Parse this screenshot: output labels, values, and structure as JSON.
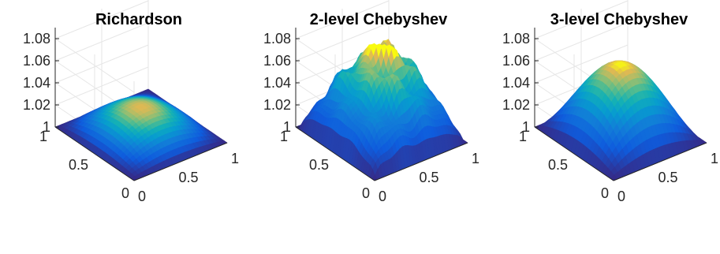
{
  "chart_data": [
    {
      "type": "surface",
      "title": "Richardson",
      "x_ticks": [
        "0",
        "0.5",
        "1"
      ],
      "y_ticks": [
        "0",
        "0.5",
        "1"
      ],
      "z_ticks": [
        "1",
        "1.02",
        "1.04",
        "1.06",
        "1.08"
      ],
      "xlim": [
        0,
        1
      ],
      "ylim": [
        0,
        1
      ],
      "zlim": [
        1,
        1.09
      ],
      "peak": 1.025,
      "base": 1.0,
      "shape": "smooth-dome",
      "grid": true,
      "colormap": "parula"
    },
    {
      "type": "surface",
      "title": "2-level Chebyshev",
      "x_ticks": [
        "0",
        "0.5",
        "1"
      ],
      "y_ticks": [
        "0",
        "0.5",
        "1"
      ],
      "z_ticks": [
        "1",
        "1.02",
        "1.04",
        "1.06",
        "1.08"
      ],
      "xlim": [
        0,
        1
      ],
      "ylim": [
        0,
        1
      ],
      "zlim": [
        1,
        1.09
      ],
      "peak": 1.077,
      "base": 1.0,
      "shape": "rough-peaked",
      "grid": true,
      "colormap": "parula"
    },
    {
      "type": "surface",
      "title": "3-level Chebyshev",
      "x_ticks": [
        "0",
        "0.5",
        "1"
      ],
      "y_ticks": [
        "0",
        "0.5",
        "1"
      ],
      "z_ticks": [
        "1",
        "1.02",
        "1.04",
        "1.06",
        "1.08"
      ],
      "xlim": [
        0,
        1
      ],
      "ylim": [
        0,
        1
      ],
      "zlim": [
        1,
        1.09
      ],
      "peak": 1.064,
      "base": 1.0,
      "shape": "smooth-dome",
      "grid": true,
      "colormap": "parula"
    }
  ]
}
